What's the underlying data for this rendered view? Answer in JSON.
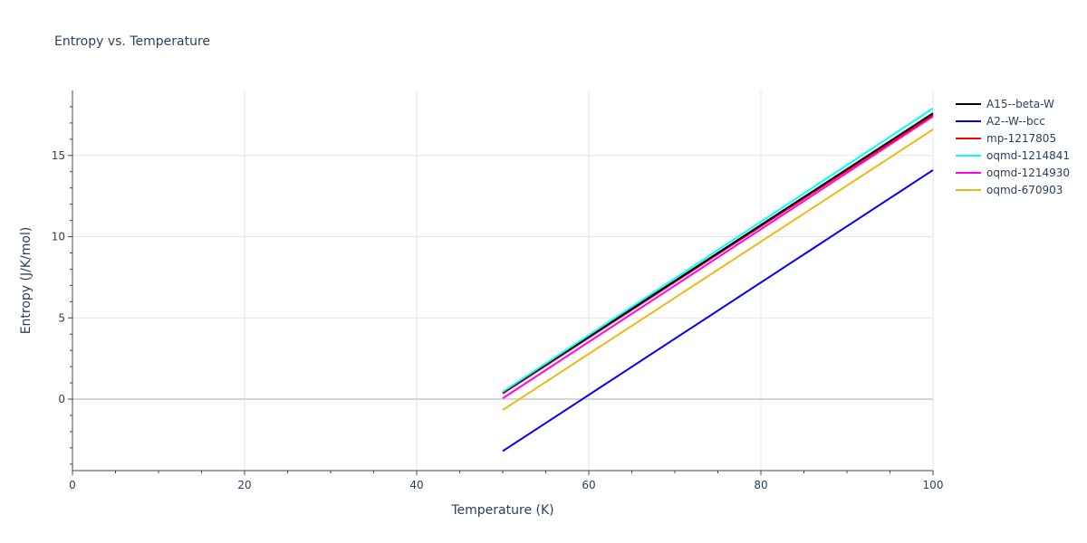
{
  "chart_data": {
    "type": "line",
    "title": "Entropy vs. Temperature",
    "xlabel": "Temperature (K)",
    "ylabel": "Entropy (J/K/mol)",
    "xlim": [
      0,
      100
    ],
    "ylim": [
      -4.4,
      19
    ],
    "x_ticks": [
      0,
      20,
      40,
      60,
      80,
      100
    ],
    "y_ticks": [
      0,
      5,
      10,
      15
    ],
    "grid": true,
    "legend_position": "right",
    "series": [
      {
        "name": "A15--beta-W",
        "color": "#000000",
        "x": [
          50,
          100
        ],
        "y": [
          0.4,
          17.6
        ]
      },
      {
        "name": "A2--W--bcc",
        "color": "#0000ff",
        "x": [
          50,
          100
        ],
        "y": [
          -3.2,
          14.1
        ]
      },
      {
        "name": "mp-1217805",
        "color": "#ff0000",
        "x": [
          50,
          100
        ],
        "y": [
          0.35,
          17.5
        ]
      },
      {
        "name": "oqmd-1214841",
        "color": "#00ffff",
        "x": [
          50,
          100
        ],
        "y": [
          0.45,
          17.9
        ]
      },
      {
        "name": "oqmd-1214930",
        "color": "#ff00ff",
        "x": [
          50,
          100
        ],
        "y": [
          0.05,
          17.4
        ]
      },
      {
        "name": "oqmd-670903",
        "color": "#ebb914",
        "x": [
          50,
          100
        ],
        "y": [
          -0.67,
          16.6
        ]
      }
    ]
  }
}
